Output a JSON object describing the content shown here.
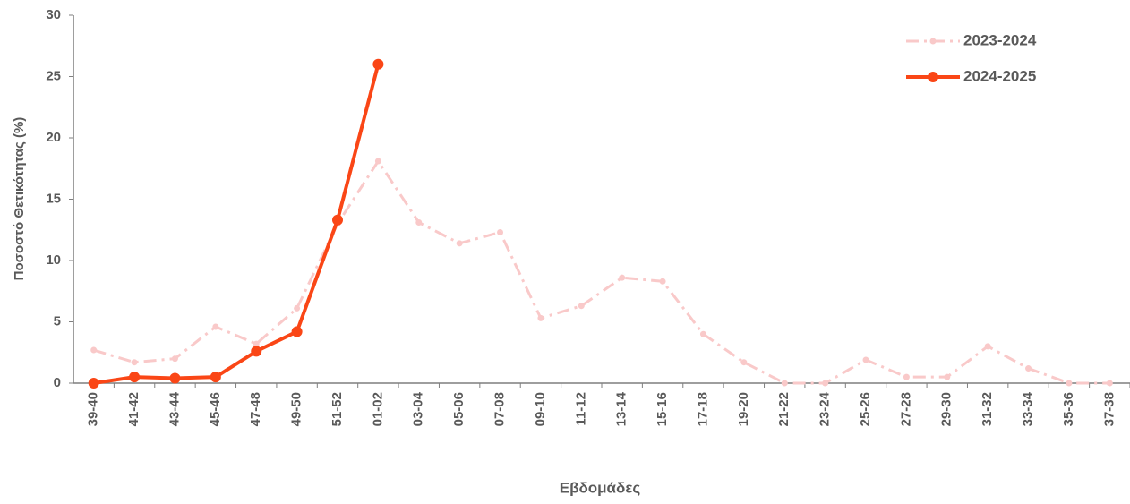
{
  "chart_data": {
    "type": "line",
    "y_label": "Ποσοστό Θετικότητας (%)",
    "x_label": "Εβδομάδες",
    "categories": [
      "39-40",
      "41-42",
      "43-44",
      "45-46",
      "47-48",
      "49-50",
      "51-52",
      "01-02",
      "03-04",
      "05-06",
      "07-08",
      "09-10",
      "11-12",
      "13-14",
      "15-16",
      "17-18",
      "19-20",
      "21-22",
      "23-24",
      "25-26",
      "27-28",
      "29-30",
      "31-32",
      "33-34",
      "35-36",
      "37-38"
    ],
    "series": [
      {
        "name": "2023-2024",
        "color": "#f9c9c9",
        "style": "dashdot",
        "values": [
          2.7,
          1.7,
          2.0,
          4.6,
          3.2,
          6.1,
          13.0,
          18.1,
          13.1,
          11.4,
          12.3,
          5.3,
          6.3,
          8.6,
          8.3,
          4.0,
          1.7,
          0,
          0,
          1.9,
          0.5,
          0.5,
          3.0,
          1.2,
          0,
          0
        ]
      },
      {
        "name": "2024-2025",
        "color": "#fa4616",
        "style": "solid",
        "values": [
          0,
          0.5,
          0.4,
          0.5,
          2.6,
          4.2,
          13.3,
          26.0,
          null,
          null,
          null,
          null,
          null,
          null,
          null,
          null,
          null,
          null,
          null,
          null,
          null,
          null,
          null,
          null,
          null,
          null
        ]
      }
    ],
    "ylim": [
      0,
      30
    ],
    "yticks": [
      0,
      5,
      10,
      15,
      20,
      25,
      30
    ],
    "grid": false,
    "legend": "top-right"
  }
}
